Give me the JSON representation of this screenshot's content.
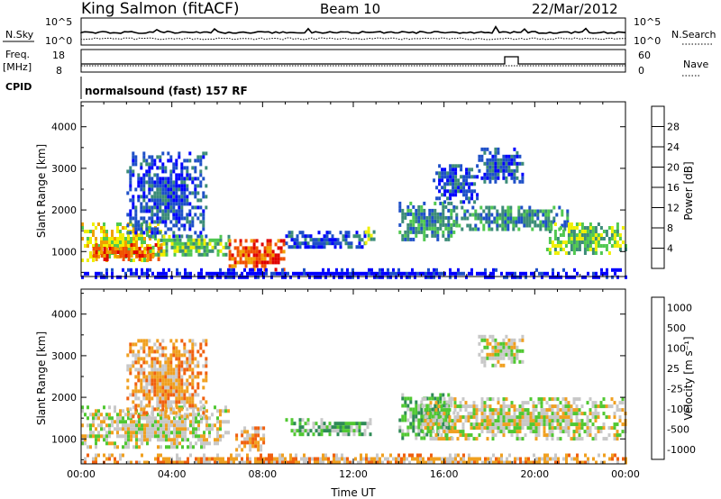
{
  "header": {
    "station": "King Salmon (fitACF)",
    "beam": "Beam 10",
    "date": "22/Mar/2012"
  },
  "status_panels": {
    "nsky_label": "N.Sky",
    "nsky_ticks": [
      "10^5",
      "10^0"
    ],
    "nsearch_label": "N.Search",
    "nsearch_ticks": [
      "10^5",
      "10^0"
    ],
    "freq_label": "Freq.",
    "freq_unit": "[MHz]",
    "freq_ticks": [
      "18",
      "8"
    ],
    "nave_label": "Nave",
    "nave_ticks": [
      "60",
      "0"
    ],
    "cpid_label": "CPID",
    "cpid_value": "normalsound (fast) 157 RF"
  },
  "colors": {
    "power": [
      "#0000ff",
      "#1e50c8",
      "#3c8c78",
      "#50c850",
      "#f0f000",
      "#f0a000",
      "#f05000",
      "#e00000"
    ],
    "velocity": [
      "#1a3cd6",
      "#2a5aa0",
      "#2e8a56",
      "#50c832",
      "#c8c8c8",
      "#f0a020",
      "#f06010",
      "#e00000"
    ]
  },
  "chart_data": [
    {
      "type": "heatmap",
      "name": "Power",
      "ylabel": "Slant Range [km]",
      "xlabel": "",
      "yticks": [
        "1000",
        "2000",
        "3000",
        "4000"
      ],
      "ylim": [
        400,
        4600
      ],
      "xlim_hours": [
        0,
        24
      ],
      "colorbar_label": "Power [dB]",
      "colorbar_ticks": [
        "4",
        "8",
        "12",
        "16",
        "20",
        "24",
        "28"
      ],
      "colorbar_range": [
        0,
        32
      ],
      "echo_regions": [
        {
          "t0": 0.0,
          "t1": 3.5,
          "r0": 800,
          "r1": 1700,
          "level": 4
        },
        {
          "t0": 0.5,
          "t1": 3.8,
          "r0": 850,
          "r1": 1200,
          "level": 6
        },
        {
          "t0": 2.0,
          "t1": 5.5,
          "r0": 1400,
          "r1": 3400,
          "level": 1
        },
        {
          "t0": 3.0,
          "t1": 6.5,
          "r0": 900,
          "r1": 1400,
          "level": 3
        },
        {
          "t0": 6.5,
          "t1": 9.0,
          "r0": 600,
          "r1": 1300,
          "level": 6
        },
        {
          "t0": 9.0,
          "t1": 12.5,
          "r0": 1100,
          "r1": 1500,
          "level": 1
        },
        {
          "t0": 12.5,
          "t1": 13.0,
          "r0": 1250,
          "r1": 1600,
          "level": 3
        },
        {
          "t0": 14.0,
          "t1": 16.5,
          "r0": 1300,
          "r1": 2200,
          "level": 2
        },
        {
          "t0": 15.5,
          "t1": 17.5,
          "r0": 2200,
          "r1": 3100,
          "level": 1
        },
        {
          "t0": 16.5,
          "t1": 21.5,
          "r0": 1500,
          "r1": 2100,
          "level": 2
        },
        {
          "t0": 20.5,
          "t1": 24.0,
          "r0": 1000,
          "r1": 1700,
          "level": 3
        },
        {
          "t0": 17.5,
          "t1": 19.5,
          "r0": 2700,
          "r1": 3500,
          "level": 1
        },
        {
          "t0": 0.0,
          "t1": 24.0,
          "r0": 400,
          "r1": 600,
          "level": 0
        }
      ]
    },
    {
      "type": "heatmap",
      "name": "Velocity",
      "ylabel": "Slant Range [km]",
      "xlabel": "Time UT",
      "yticks": [
        "1000",
        "2000",
        "3000",
        "4000"
      ],
      "ylim": [
        400,
        4600
      ],
      "xticks": [
        "00:00",
        "04:00",
        "08:00",
        "12:00",
        "16:00",
        "20:00",
        "00:00"
      ],
      "xlim_hours": [
        0,
        24
      ],
      "colorbar_label": "Velocity [m s⁻¹]",
      "colorbar_ticks": [
        "1000",
        "500",
        "100",
        "25",
        "-25",
        "-100",
        "-500",
        "-1000"
      ],
      "echo_regions": [
        {
          "t0": 0.0,
          "t1": 6.5,
          "r0": 800,
          "r1": 1800,
          "level": 4
        },
        {
          "t0": 2.0,
          "t1": 5.5,
          "r0": 1500,
          "r1": 3400,
          "level": 5
        },
        {
          "t0": 6.8,
          "t1": 8.0,
          "r0": 700,
          "r1": 1300,
          "level": 5
        },
        {
          "t0": 9.0,
          "t1": 12.8,
          "r0": 1100,
          "r1": 1500,
          "level": 3
        },
        {
          "t0": 14.0,
          "t1": 16.5,
          "r0": 1000,
          "r1": 2100,
          "level": 3
        },
        {
          "t0": 15.0,
          "t1": 24.0,
          "r0": 1000,
          "r1": 2000,
          "level": 4
        },
        {
          "t0": 17.5,
          "t1": 19.5,
          "r0": 2800,
          "r1": 3500,
          "level": 4
        },
        {
          "t0": 0.0,
          "t1": 24.0,
          "r0": 400,
          "r1": 650,
          "level": 5
        }
      ]
    }
  ]
}
